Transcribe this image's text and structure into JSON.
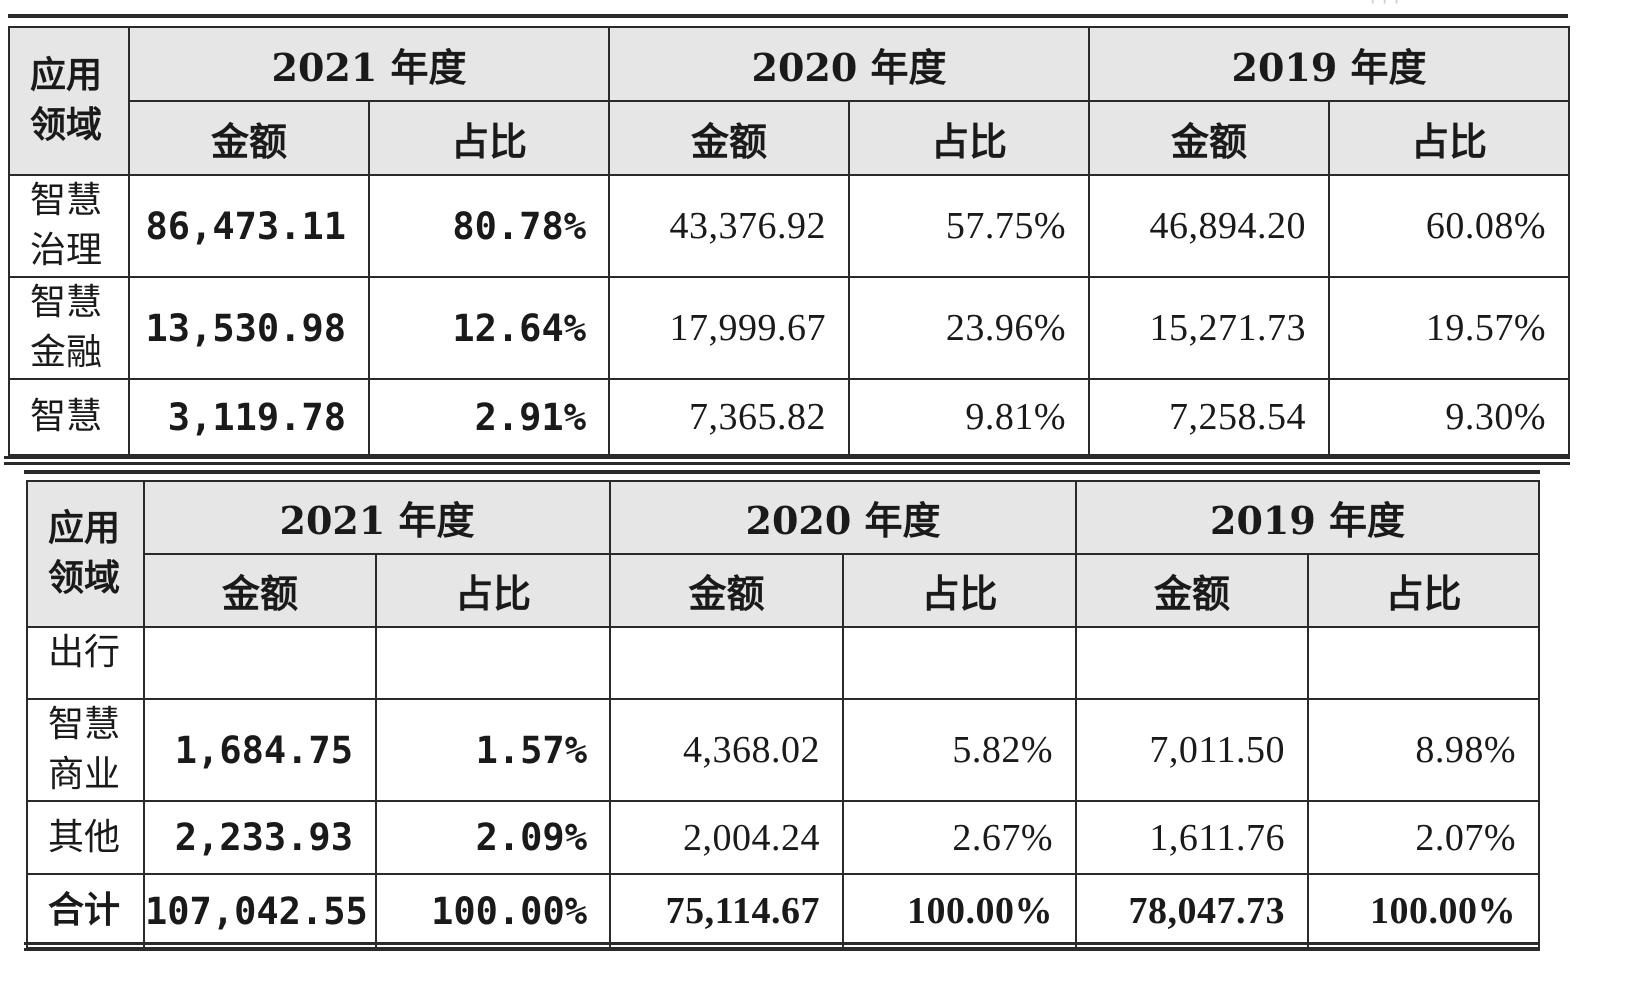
{
  "table_top": {
    "header": {
      "field_label": [
        "应用",
        "领域"
      ],
      "years": [
        "2021 年度",
        "2020 年度",
        "2019 年度"
      ],
      "sub_amount": "金额",
      "sub_ratio": "占比"
    },
    "rows": [
      {
        "field": [
          "智慧",
          "治理"
        ],
        "y2021_amount": "86,473.11",
        "y2021_ratio": "80.78%",
        "y2020_amount": "43,376.92",
        "y2020_ratio": "57.75%",
        "y2019_amount": "46,894.20",
        "y2019_ratio": "60.08%"
      },
      {
        "field": [
          "智慧",
          "金融"
        ],
        "y2021_amount": "13,530.98",
        "y2021_ratio": "12.64%",
        "y2020_amount": "17,999.67",
        "y2020_ratio": "23.96%",
        "y2019_amount": "15,271.73",
        "y2019_ratio": "19.57%"
      },
      {
        "field": [
          "智慧"
        ],
        "y2021_amount": "3,119.78",
        "y2021_ratio": "2.91%",
        "y2020_amount": "7,365.82",
        "y2020_ratio": "9.81%",
        "y2019_amount": "7,258.54",
        "y2019_ratio": "9.30%"
      }
    ]
  },
  "table_bottom": {
    "header": {
      "field_label": [
        "应用",
        "领域"
      ],
      "years": [
        "2021 年度",
        "2020 年度",
        "2019 年度"
      ],
      "sub_amount": "金额",
      "sub_ratio": "占比"
    },
    "rows": [
      {
        "field": [
          "出行"
        ],
        "y2021_amount": "",
        "y2021_ratio": "",
        "y2020_amount": "",
        "y2020_ratio": "",
        "y2019_amount": "",
        "y2019_ratio": ""
      },
      {
        "field": [
          "智慧",
          "商业"
        ],
        "y2021_amount": "1,684.75",
        "y2021_ratio": "1.57%",
        "y2020_amount": "4,368.02",
        "y2020_ratio": "5.82%",
        "y2019_amount": "7,011.50",
        "y2019_ratio": "8.98%"
      },
      {
        "field": [
          "其他"
        ],
        "y2021_amount": "2,233.93",
        "y2021_ratio": "2.09%",
        "y2020_amount": "2,004.24",
        "y2020_ratio": "2.67%",
        "y2019_amount": "1,611.76",
        "y2019_ratio": "2.07%"
      },
      {
        "field": [
          "合计"
        ],
        "y2021_amount": "107,042.55",
        "y2021_ratio": "100.00%",
        "y2020_amount": "75,114.67",
        "y2020_ratio": "100.00%",
        "y2019_amount": "78,047.73",
        "y2019_ratio": "100.00%"
      }
    ]
  }
}
